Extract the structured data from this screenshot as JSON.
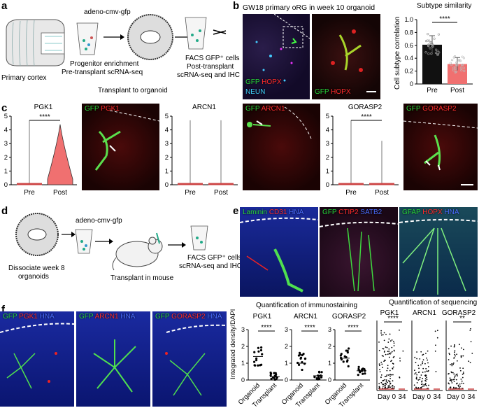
{
  "panel_a": {
    "label": "a",
    "virus": "adeno-cmv-gfp",
    "enrichment_line1": "Progenitor enrichment",
    "enrichment_line2": "Pre-transplant scRNA-seq",
    "facs_line1": "FACS GFP⁺ cells",
    "facs_line2": "Post-transplant",
    "facs_line3": "scRNA-seq and IHC",
    "primary_cortex": "Primary cortex",
    "transplant": "Transplant to organoid"
  },
  "panel_b": {
    "label": "b",
    "title": "GW18 primary oRG in week 10 organoid",
    "img1_gfp": "GFP",
    "img1_hopx": "HOPX",
    "img1_neun": "NEUN",
    "img2_gfp": "GFP",
    "img2_hopx": "HOPX"
  },
  "panel_b_chart": {
    "chart_data": {
      "type": "bar",
      "title": "Subtype similarity",
      "ylabel": "Cell subtype correlation",
      "categories": [
        "Pre",
        "Post"
      ],
      "values": [
        0.61,
        0.31
      ],
      "errors": [
        0.14,
        0.1
      ],
      "ylim": [
        0,
        1.0
      ],
      "yticks": [
        "0",
        "0.2",
        "0.4",
        "0.6",
        "0.8",
        "1.0"
      ],
      "significance": "****",
      "colors": [
        "#111111",
        "#f07070"
      ]
    }
  },
  "panel_c": {
    "label": "c",
    "violin_charts": {
      "chart_data": [
        {
          "type": "violin",
          "title": "PGK1",
          "categories": [
            "Pre",
            "Post"
          ],
          "values": [
            0.1,
            2.0
          ],
          "ylim": [
            0,
            5
          ],
          "yticks": [
            "0",
            "1",
            "2",
            "3",
            "4",
            "5"
          ],
          "significance": "****"
        },
        {
          "type": "violin",
          "title": "ARCN1",
          "categories": [
            "Pre",
            "Post"
          ],
          "values": [
            0.05,
            0.05
          ],
          "ylim": [
            0,
            5
          ],
          "yticks": [
            "0",
            "1",
            "2",
            "3",
            "4",
            "5"
          ],
          "significance": ""
        },
        {
          "type": "violin",
          "title": "GORASP2",
          "categories": [
            "Pre",
            "Post"
          ],
          "values": [
            0.05,
            0.1
          ],
          "ylim": [
            0,
            5
          ],
          "yticks": [
            "0",
            "1",
            "2",
            "3",
            "4",
            "5"
          ],
          "significance": "****"
        }
      ]
    },
    "img_pgk1": {
      "gfp": "GFP",
      "marker": "PGK1"
    },
    "img_arcn1": {
      "gfp": "GFP",
      "marker": "ARCN1"
    },
    "img_gorasp2": {
      "gfp": "GFP",
      "marker": "GORASP2"
    }
  },
  "panel_d": {
    "label": "d",
    "virus": "adeno-cmv-gfp",
    "dissociate_line1": "Dissociate week 8",
    "dissociate_line2": "organoids",
    "transplant": "Transplant in mouse",
    "facs_line1": "FACS GFP⁺ cells",
    "facs_line2": "scRNA-seq and IHC"
  },
  "panel_e": {
    "label": "e",
    "img1": {
      "a": "Laminin",
      "b": "CD31",
      "c": "HNA"
    },
    "img2": {
      "a": "GFP",
      "b": "CTIP2",
      "c": "SATB2"
    },
    "img3": {
      "a": "GFAP",
      "b": "HOPX",
      "c": "HNA"
    }
  },
  "panel_f": {
    "label": "f",
    "img1": {
      "a": "GFP",
      "b": "PGK1",
      "c": "HNA"
    },
    "img2": {
      "a": "GFP",
      "b": "ARCN1",
      "c": "HNA"
    },
    "img3": {
      "a": "GFP",
      "b": "GORASP2",
      "c": "HNA"
    },
    "immuno_title": "Quantification of immunostaining",
    "seq_title": "Quantification of sequencing",
    "immuno_ylabel": "Integrated density/DAPI",
    "immuno_charts": {
      "chart_data": [
        {
          "type": "scatter",
          "title": "PGK1",
          "categories": [
            "Organoid",
            "Transplant"
          ],
          "values": [
            1.4,
            0.2
          ],
          "ylim": [
            0,
            3
          ],
          "yticks": [
            "0",
            "1",
            "2",
            "3"
          ],
          "significance": "****"
        },
        {
          "type": "scatter",
          "title": "ARCN1",
          "categories": [
            "Organoid",
            "Transplant"
          ],
          "values": [
            1.0,
            0.25
          ],
          "ylim": [
            0,
            3
          ],
          "yticks": [
            "0",
            "1",
            "2",
            "3"
          ],
          "significance": "****"
        },
        {
          "type": "scatter",
          "title": "GORASP2",
          "categories": [
            "Organoid",
            "Transplant"
          ],
          "values": [
            1.3,
            0.55
          ],
          "ylim": [
            0,
            3
          ],
          "yticks": [
            "0",
            "1",
            "2",
            "3"
          ],
          "significance": "****"
        }
      ]
    },
    "seq_charts": {
      "chart_data": [
        {
          "type": "scatter",
          "title": "PGK1",
          "categories": [
            "Day 0",
            "34"
          ],
          "significance": "****"
        },
        {
          "type": "scatter",
          "title": "ARCN1",
          "categories": [
            "Day 0",
            "34"
          ],
          "significance": ""
        },
        {
          "type": "scatter",
          "title": "GORASP2",
          "categories": [
            "Day 0",
            "34"
          ],
          "significance": "**"
        }
      ]
    }
  }
}
